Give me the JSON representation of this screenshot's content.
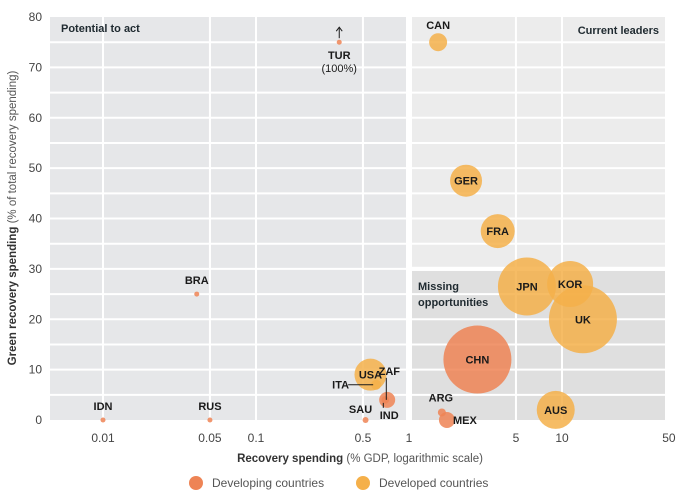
{
  "chart_data": {
    "type": "scatter",
    "title": "",
    "xlabel_bold": "Recovery spending",
    "xlabel_rest": " (% GDP, logarithmic scale)",
    "ylabel_bold": "Green recovery spending",
    "ylabel_rest": " (% of total recovery spending)",
    "x_scale": "log",
    "xlim": [
      0.005,
      50
    ],
    "ylim": [
      0,
      80
    ],
    "x_ticks": [
      {
        "value": 0.01,
        "label": "0.01"
      },
      {
        "value": 0.05,
        "label": "0.05"
      },
      {
        "value": 0.1,
        "label": "0.1"
      },
      {
        "value": 0.5,
        "label": "0.5"
      },
      {
        "value": 1,
        "label": "1"
      },
      {
        "value": 5,
        "label": "5"
      },
      {
        "value": 10,
        "label": "10"
      },
      {
        "value": 50,
        "label": "50"
      }
    ],
    "y_ticks": [
      {
        "value": 0,
        "label": "0"
      },
      {
        "value": 10,
        "label": "10"
      },
      {
        "value": 20,
        "label": "20"
      },
      {
        "value": 30,
        "label": "30"
      },
      {
        "value": 40,
        "label": "40"
      },
      {
        "value": 50,
        "label": "50"
      },
      {
        "value": 60,
        "label": "60"
      },
      {
        "value": 70,
        "label": "70"
      },
      {
        "value": 80,
        "label": "80"
      }
    ],
    "grid": true,
    "quadrant_split": {
      "x": 1,
      "y": 30
    },
    "quadrants": [
      {
        "name": "potential-to-act",
        "label": "Potential to act",
        "position": "top-left"
      },
      {
        "name": "current-leaders",
        "label": "Current leaders",
        "position": "top-right"
      },
      {
        "name": "missing-opportunities",
        "label_lines": [
          "Missing",
          "opportunities"
        ],
        "position": "bottom-right"
      }
    ],
    "series": [
      {
        "name": "Developing countries",
        "color": "#EE8455",
        "points": [
          {
            "label": "TUR",
            "x": 0.35,
            "y": 75,
            "size": 1,
            "note": "(100%)",
            "arrow": "up"
          },
          {
            "label": "BRA",
            "x": 0.041,
            "y": 25,
            "size": 1
          },
          {
            "label": "IDN",
            "x": 0.01,
            "y": 0,
            "size": 1
          },
          {
            "label": "RUS",
            "x": 0.05,
            "y": 0,
            "size": 1
          },
          {
            "label": "SAU",
            "x": 0.52,
            "y": 0,
            "size": 1.2
          },
          {
            "label": "ZAF",
            "x": 0.7,
            "y": 4,
            "size": 1.5
          },
          {
            "label": "IND",
            "x": 0.72,
            "y": 4,
            "size": 3.2
          },
          {
            "label": "ARG",
            "x": 1.64,
            "y": 1.5,
            "size": 1.6
          },
          {
            "label": "MEX",
            "x": 1.77,
            "y": 0,
            "size": 3.2
          },
          {
            "label": "CHN",
            "x": 2.8,
            "y": 12,
            "size": 13.6
          }
        ]
      },
      {
        "name": "Developed countries",
        "color": "#F5B04A",
        "points": [
          {
            "label": "CAN",
            "x": 1.55,
            "y": 75,
            "size": 3.6
          },
          {
            "label": "GER",
            "x": 2.36,
            "y": 47.5,
            "size": 6.4
          },
          {
            "label": "FRA",
            "x": 3.8,
            "y": 37.5,
            "size": 6.8
          },
          {
            "label": "JPN",
            "x": 5.9,
            "y": 26.5,
            "size": 11.6
          },
          {
            "label": "KOR",
            "x": 11.3,
            "y": 27,
            "size": 9.2
          },
          {
            "label": "UK",
            "x": 13.7,
            "y": 20,
            "size": 13.6
          },
          {
            "label": "AUS",
            "x": 9.1,
            "y": 2,
            "size": 7.6
          },
          {
            "label": "USA",
            "x": 0.56,
            "y": 9,
            "size": 6.4
          },
          {
            "label": "ITA",
            "x": 0.61,
            "y": 7,
            "size": 2
          }
        ]
      }
    ],
    "legend": {
      "position": "bottom-center",
      "items": [
        {
          "label": "Developing countries",
          "color": "#EE8455"
        },
        {
          "label": "Developed countries",
          "color": "#F5B04A"
        }
      ]
    }
  }
}
